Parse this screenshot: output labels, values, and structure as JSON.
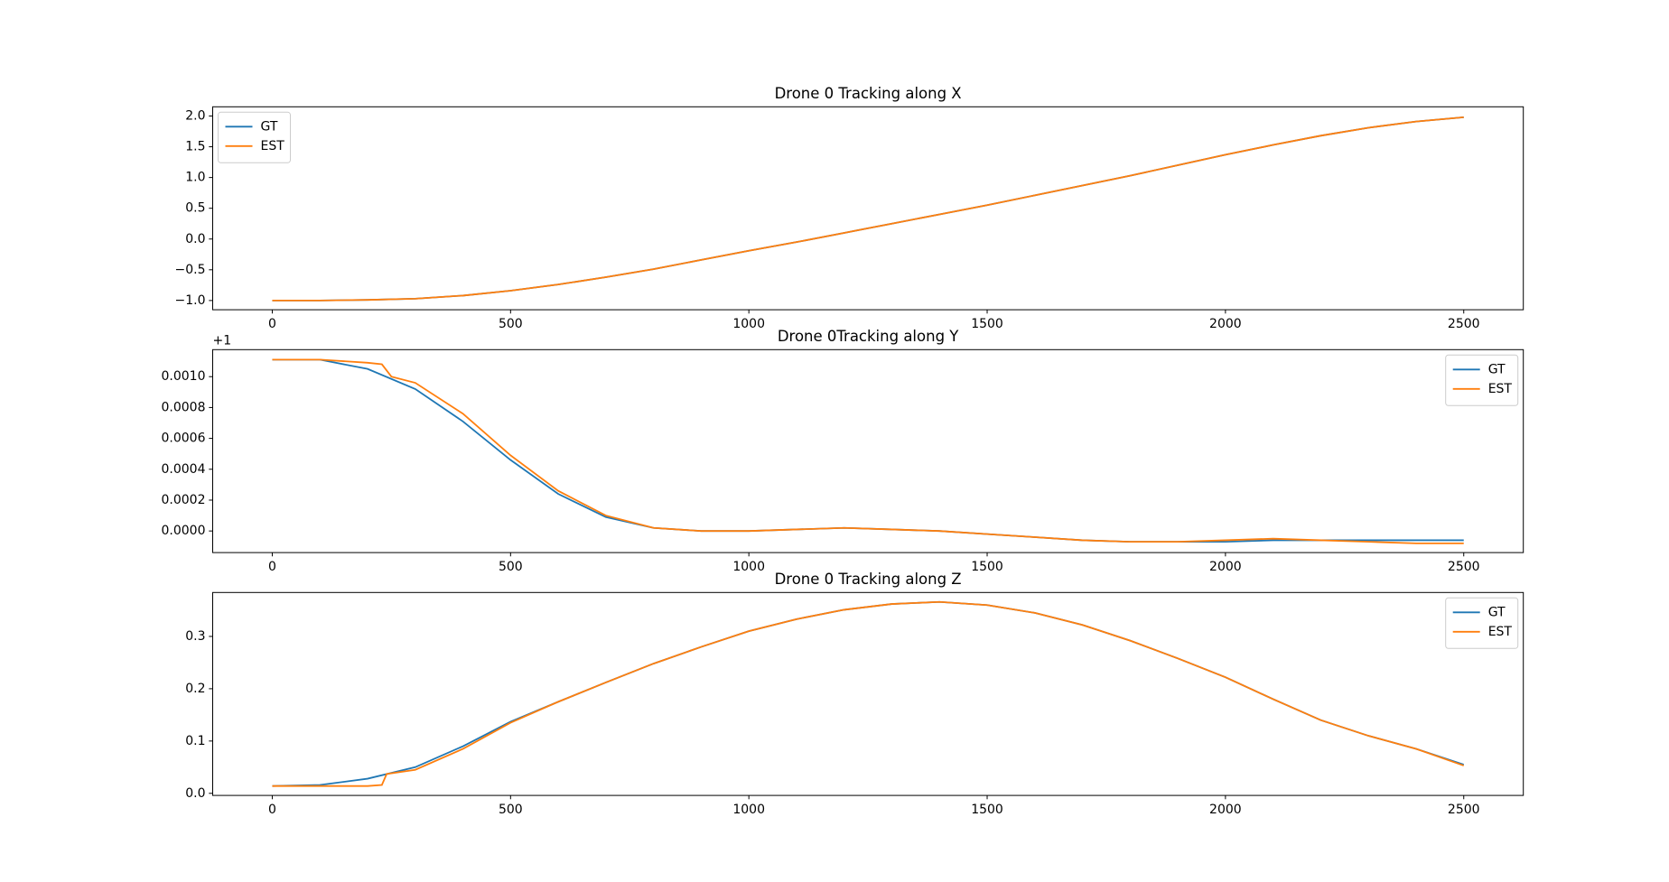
{
  "chart_data": [
    {
      "type": "line",
      "title": "Drone 0 Tracking along X",
      "legend": "upper left",
      "xlim": [
        -125,
        2625
      ],
      "xticks": [
        0,
        500,
        1000,
        1500,
        2000,
        2500
      ],
      "ylim": [
        -1.15,
        2.15
      ],
      "yticks": [
        {
          "value": -1,
          "label": "−1.0"
        },
        {
          "value": -0.5,
          "label": "−0.5"
        },
        {
          "value": 0,
          "label": "0.0"
        },
        {
          "value": 0.5,
          "label": "0.5"
        },
        {
          "value": 1,
          "label": "1.0"
        },
        {
          "value": 1.5,
          "label": "1.5"
        },
        {
          "value": 2,
          "label": "2.0"
        }
      ],
      "series": [
        {
          "name": "GT",
          "color": "#1f77b4",
          "x": [
            0,
            100,
            200,
            300,
            400,
            500,
            600,
            700,
            800,
            900,
            1000,
            1100,
            1200,
            1300,
            1400,
            1500,
            1600,
            1700,
            1800,
            1900,
            2000,
            2100,
            2200,
            2300,
            2400,
            2500
          ],
          "values": [
            -1.0,
            -1.0,
            -0.99,
            -0.97,
            -0.92,
            -0.84,
            -0.74,
            -0.62,
            -0.49,
            -0.34,
            -0.19,
            -0.05,
            0.1,
            0.25,
            0.4,
            0.55,
            0.71,
            0.87,
            1.03,
            1.2,
            1.37,
            1.53,
            1.68,
            1.81,
            1.91,
            1.98
          ]
        },
        {
          "name": "EST",
          "color": "#ff7f0e",
          "x": [
            0,
            100,
            200,
            300,
            400,
            500,
            600,
            700,
            800,
            900,
            1000,
            1100,
            1200,
            1300,
            1400,
            1500,
            1600,
            1700,
            1800,
            1900,
            2000,
            2100,
            2200,
            2300,
            2400,
            2500
          ],
          "values": [
            -1.0,
            -1.0,
            -0.99,
            -0.97,
            -0.92,
            -0.84,
            -0.74,
            -0.62,
            -0.49,
            -0.34,
            -0.19,
            -0.05,
            0.1,
            0.25,
            0.4,
            0.55,
            0.71,
            0.87,
            1.03,
            1.2,
            1.37,
            1.53,
            1.68,
            1.81,
            1.91,
            1.98
          ]
        }
      ]
    },
    {
      "type": "line",
      "title": "Drone 0Tracking along Y",
      "legend": "upper right",
      "y_offset_label": "+1",
      "xlim": [
        -125,
        2625
      ],
      "xticks": [
        0,
        500,
        1000,
        1500,
        2000,
        2500
      ],
      "ylim": [
        -0.00014,
        0.001175
      ],
      "yticks": [
        {
          "value": 0,
          "label": "0.0000"
        },
        {
          "value": 0.0002,
          "label": "0.0002"
        },
        {
          "value": 0.0004,
          "label": "0.0004"
        },
        {
          "value": 0.0006,
          "label": "0.0006"
        },
        {
          "value": 0.0008,
          "label": "0.0008"
        },
        {
          "value": 0.001,
          "label": "0.0010"
        }
      ],
      "series": [
        {
          "name": "GT",
          "color": "#1f77b4",
          "x": [
            0,
            100,
            200,
            300,
            400,
            500,
            600,
            700,
            800,
            900,
            1000,
            1100,
            1200,
            1300,
            1400,
            1500,
            1600,
            1700,
            1800,
            1900,
            2000,
            2100,
            2200,
            2300,
            2400,
            2500
          ],
          "values": [
            0.00111,
            0.00111,
            0.00105,
            0.00092,
            0.00071,
            0.00046,
            0.00024,
            9e-05,
            2e-05,
            0.0,
            0.0,
            1e-05,
            2e-05,
            1e-05,
            0.0,
            -2e-05,
            -4e-05,
            -6e-05,
            -7e-05,
            -7e-05,
            -7e-05,
            -6e-05,
            -6e-05,
            -6e-05,
            -6e-05,
            -6e-05
          ]
        },
        {
          "name": "EST",
          "color": "#ff7f0e",
          "x": [
            0,
            100,
            200,
            230,
            250,
            300,
            400,
            500,
            600,
            700,
            800,
            900,
            1000,
            1100,
            1200,
            1300,
            1400,
            1500,
            1600,
            1700,
            1800,
            1900,
            2000,
            2100,
            2200,
            2300,
            2400,
            2500
          ],
          "values": [
            0.00111,
            0.00111,
            0.00109,
            0.00108,
            0.001,
            0.00096,
            0.00076,
            0.00049,
            0.00026,
            0.0001,
            2e-05,
            0.0,
            0.0,
            1e-05,
            2e-05,
            1e-05,
            0.0,
            -2e-05,
            -4e-05,
            -6e-05,
            -7e-05,
            -7e-05,
            -6e-05,
            -5e-05,
            -6e-05,
            -7e-05,
            -8e-05,
            -8e-05
          ]
        }
      ]
    },
    {
      "type": "line",
      "title": "Drone 0 Tracking along Z",
      "legend": "upper right",
      "xlim": [
        -125,
        2625
      ],
      "xticks": [
        0,
        500,
        1000,
        1500,
        2000,
        2500
      ],
      "ylim": [
        -0.004,
        0.384
      ],
      "yticks": [
        {
          "value": 0,
          "label": "0.0"
        },
        {
          "value": 0.1,
          "label": "0.1"
        },
        {
          "value": 0.2,
          "label": "0.2"
        },
        {
          "value": 0.3,
          "label": "0.3"
        }
      ],
      "series": [
        {
          "name": "GT",
          "color": "#1f77b4",
          "x": [
            0,
            100,
            200,
            300,
            400,
            500,
            600,
            700,
            800,
            900,
            1000,
            1100,
            1200,
            1300,
            1400,
            1500,
            1600,
            1700,
            1800,
            1900,
            2000,
            2100,
            2200,
            2300,
            2400,
            2500
          ],
          "values": [
            0.014,
            0.016,
            0.028,
            0.05,
            0.09,
            0.137,
            0.175,
            0.212,
            0.248,
            0.28,
            0.31,
            0.333,
            0.351,
            0.362,
            0.366,
            0.36,
            0.345,
            0.322,
            0.292,
            0.258,
            0.222,
            0.18,
            0.14,
            0.11,
            0.085,
            0.055
          ]
        },
        {
          "name": "EST",
          "color": "#ff7f0e",
          "x": [
            0,
            100,
            200,
            230,
            240,
            300,
            400,
            500,
            600,
            700,
            800,
            900,
            1000,
            1100,
            1200,
            1300,
            1400,
            1500,
            1600,
            1700,
            1800,
            1900,
            2000,
            2100,
            2200,
            2300,
            2400,
            2500
          ],
          "values": [
            0.014,
            0.014,
            0.014,
            0.016,
            0.037,
            0.045,
            0.085,
            0.135,
            0.175,
            0.212,
            0.248,
            0.28,
            0.31,
            0.333,
            0.351,
            0.362,
            0.366,
            0.36,
            0.345,
            0.322,
            0.292,
            0.258,
            0.222,
            0.18,
            0.14,
            0.11,
            0.085,
            0.053
          ]
        }
      ]
    }
  ]
}
